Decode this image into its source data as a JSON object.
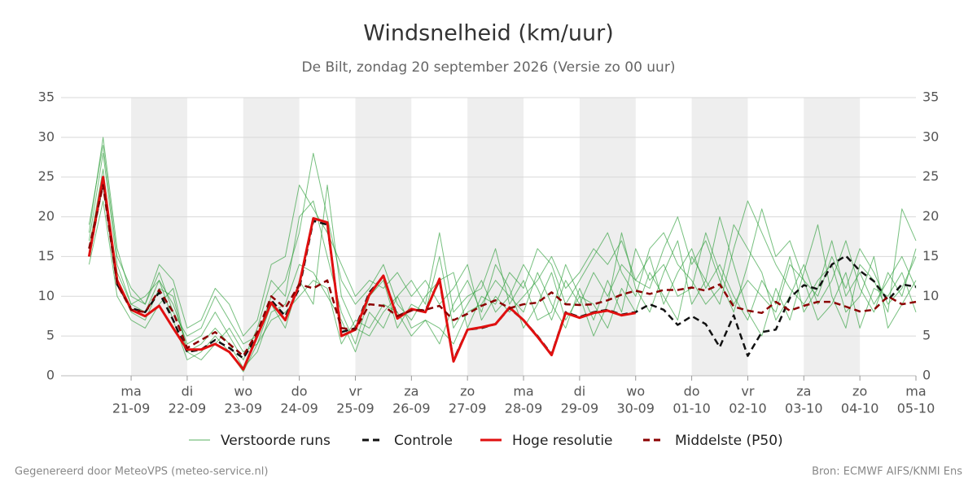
{
  "chart_data": {
    "type": "line",
    "title": "Windsnelheid (km/uur)",
    "subtitle": "De Bilt, zondag 20 september 2026 (Versie zo 00 uur)",
    "x": [
      6,
      12,
      18,
      24,
      30,
      36,
      42,
      48,
      54,
      60,
      66,
      72,
      78,
      84,
      90,
      96,
      102,
      108,
      114,
      120,
      126,
      132,
      138,
      144,
      150,
      156,
      162,
      168,
      174,
      180,
      186,
      192,
      198,
      204,
      210,
      216,
      222,
      228,
      234,
      240,
      246,
      252,
      258,
      264,
      270,
      276,
      282,
      288,
      294,
      300,
      306,
      312,
      318,
      324,
      330,
      336,
      342,
      348,
      354,
      360
    ],
    "xlim": [
      -6,
      360
    ],
    "xticks": [
      {
        "value": 24,
        "label": "ma",
        "date": "21-09"
      },
      {
        "value": 48,
        "label": "di",
        "date": "22-09"
      },
      {
        "value": 72,
        "label": "wo",
        "date": "23-09"
      },
      {
        "value": 96,
        "label": "do",
        "date": "24-09"
      },
      {
        "value": 120,
        "label": "vr",
        "date": "25-09"
      },
      {
        "value": 144,
        "label": "za",
        "date": "26-09"
      },
      {
        "value": 168,
        "label": "zo",
        "date": "27-09"
      },
      {
        "value": 192,
        "label": "ma",
        "date": "28-09"
      },
      {
        "value": 216,
        "label": "di",
        "date": "29-09"
      },
      {
        "value": 240,
        "label": "wo",
        "date": "30-09"
      },
      {
        "value": 264,
        "label": "do",
        "date": "01-10"
      },
      {
        "value": 288,
        "label": "vr",
        "date": "02-10"
      },
      {
        "value": 312,
        "label": "za",
        "date": "03-10"
      },
      {
        "value": 336,
        "label": "zo",
        "date": "04-10"
      },
      {
        "value": 360,
        "label": "ma",
        "date": "05-10"
      }
    ],
    "ylim": [
      0,
      35
    ],
    "yticks": [
      0,
      5,
      10,
      15,
      20,
      25,
      30,
      35
    ],
    "grid": true,
    "series": [
      {
        "name": "Verstoorde runs",
        "color": "#2e9e3a",
        "members": [
          [
            17,
            28,
            14,
            9,
            8,
            12,
            9,
            4,
            5,
            8,
            5,
            2,
            6,
            12,
            10,
            20,
            22,
            15,
            8,
            4,
            10,
            12,
            6,
            9,
            8,
            15,
            6,
            9,
            12,
            8,
            10,
            14,
            11,
            7,
            12,
            9,
            13,
            10,
            14,
            12,
            15,
            9,
            13,
            16,
            11,
            14,
            10,
            7,
            12,
            9,
            15,
            8,
            11,
            17,
            10,
            13,
            9,
            12,
            15,
            11
          ],
          [
            14,
            22,
            10,
            7,
            6,
            9,
            11,
            3,
            2,
            4,
            6,
            3,
            4,
            9,
            6,
            12,
            9,
            24,
            10,
            6,
            5,
            8,
            10,
            6,
            7,
            4,
            9,
            12,
            8,
            14,
            11,
            6,
            9,
            13,
            7,
            10,
            5,
            9,
            18,
            11,
            8,
            13,
            17,
            9,
            12,
            20,
            14,
            8,
            5,
            11,
            7,
            13,
            19,
            10,
            6,
            14,
            12,
            8,
            21,
            17
          ],
          [
            18,
            30,
            16,
            10,
            9,
            13,
            8,
            5,
            6,
            10,
            7,
            4,
            5,
            10,
            12,
            18,
            28,
            20,
            12,
            9,
            11,
            14,
            9,
            7,
            10,
            12,
            13,
            6,
            10,
            9,
            13,
            11,
            16,
            14,
            9,
            12,
            15,
            18,
            13,
            10,
            16,
            18,
            14,
            12,
            9,
            11,
            19,
            16,
            13,
            7,
            10,
            14,
            9,
            12,
            17,
            11,
            8,
            13,
            10,
            16
          ],
          [
            16,
            26,
            12,
            8,
            7,
            11,
            10,
            3,
            4,
            6,
            4,
            1,
            3,
            8,
            9,
            14,
            13,
            10,
            7,
            3,
            8,
            6,
            10,
            12,
            9,
            18,
            8,
            10,
            11,
            16,
            9,
            12,
            7,
            8,
            14,
            10,
            9,
            6,
            11,
            8,
            13,
            10,
            7,
            15,
            12,
            9,
            16,
            22,
            18,
            14,
            11,
            9,
            12,
            14,
            8,
            10,
            15,
            6,
            9,
            12
          ],
          [
            15,
            24,
            13,
            9,
            10,
            12,
            7,
            2,
            3,
            5,
            3,
            0.5,
            4,
            7,
            8,
            10,
            12,
            11,
            4,
            7,
            6,
            9,
            8,
            5,
            7,
            6,
            4,
            8,
            9,
            12,
            10,
            8,
            13,
            9,
            6,
            11,
            7,
            12,
            8,
            16,
            12,
            14,
            10,
            11,
            18,
            13,
            9,
            12,
            10,
            8,
            14,
            12,
            7,
            9,
            13,
            6,
            11,
            10,
            13,
            8
          ],
          [
            19,
            29,
            15,
            11,
            9,
            14,
            12,
            6,
            7,
            11,
            9,
            5,
            7,
            14,
            15,
            24,
            21,
            18,
            14,
            10,
            12,
            11,
            13,
            10,
            12,
            9,
            11,
            14,
            7,
            10,
            8,
            10,
            12,
            15,
            11,
            13,
            16,
            14,
            17,
            12,
            11,
            16,
            20,
            14,
            17,
            12,
            8,
            14,
            21,
            15,
            17,
            12,
            10,
            15,
            11,
            16,
            13,
            9,
            11,
            15
          ]
        ]
      },
      {
        "name": "Controle",
        "color": "#111111",
        "dash": true,
        "values": [
          15,
          24.5,
          11.5,
          8.5,
          8,
          10.5,
          7,
          3,
          3.3,
          4.5,
          3.5,
          2.2,
          5,
          9.5,
          7.5,
          11,
          19.5,
          19,
          5.5,
          6,
          10.5,
          12.5,
          7.5,
          8.3,
          8.2,
          12,
          2,
          5.8,
          6,
          6.5,
          8.5,
          7,
          5,
          2.7,
          8,
          7.4,
          8,
          8.3,
          7.7,
          8,
          9,
          8.3,
          6.4,
          7.5,
          6.5,
          3.6,
          7.6,
          2.5,
          5.5,
          5.8,
          9.8,
          11.4,
          10.9,
          14,
          15.1,
          13.2,
          11.9,
          9.5,
          11.5,
          11.2
        ]
      },
      {
        "name": "Hoge resolutie",
        "color": "#e01010",
        "values": [
          15,
          25,
          12,
          8.3,
          7.5,
          8.8,
          6,
          3.3,
          3.3,
          4,
          3,
          0.8,
          5,
          9.2,
          7,
          11.5,
          19.8,
          19.3,
          5,
          5.8,
          10.2,
          12.6,
          7.2,
          8.4,
          8,
          12.2,
          1.8,
          5.8,
          6.1,
          6.5,
          8.6,
          7,
          4.9,
          2.6,
          7.9,
          7.3,
          7.9,
          8.2,
          7.6,
          7.9,
          null,
          null,
          null,
          null,
          null,
          null,
          null,
          null,
          null,
          null,
          null,
          null,
          null,
          null,
          null,
          null,
          null,
          null,
          null,
          null
        ]
      },
      {
        "name": "Middelste (P50)",
        "color": "#8b0000",
        "dash": true,
        "values": [
          16,
          24,
          11.5,
          8.3,
          8,
          10.8,
          8,
          3.5,
          4.5,
          5.5,
          4,
          2.5,
          5.5,
          10,
          8.5,
          11.5,
          11,
          12,
          6,
          5.8,
          9,
          8.8,
          7.5,
          8.2,
          8.3,
          8.8,
          7,
          7.8,
          8.8,
          9.5,
          8.5,
          9,
          9.2,
          10.5,
          9,
          8.9,
          9,
          9.5,
          10.2,
          10.7,
          10.3,
          10.8,
          10.8,
          11.1,
          10.7,
          11.5,
          8.7,
          8.2,
          7.9,
          9.3,
          8.2,
          8.8,
          9.3,
          9.3,
          8.7,
          8.1,
          8.3,
          10,
          9,
          9.3
        ]
      }
    ]
  },
  "footer": {
    "left": "Gegenereerd door MeteoVPS (meteo-service.nl)",
    "right": "Bron: ECMWF AIFS/KNMI Ens"
  }
}
